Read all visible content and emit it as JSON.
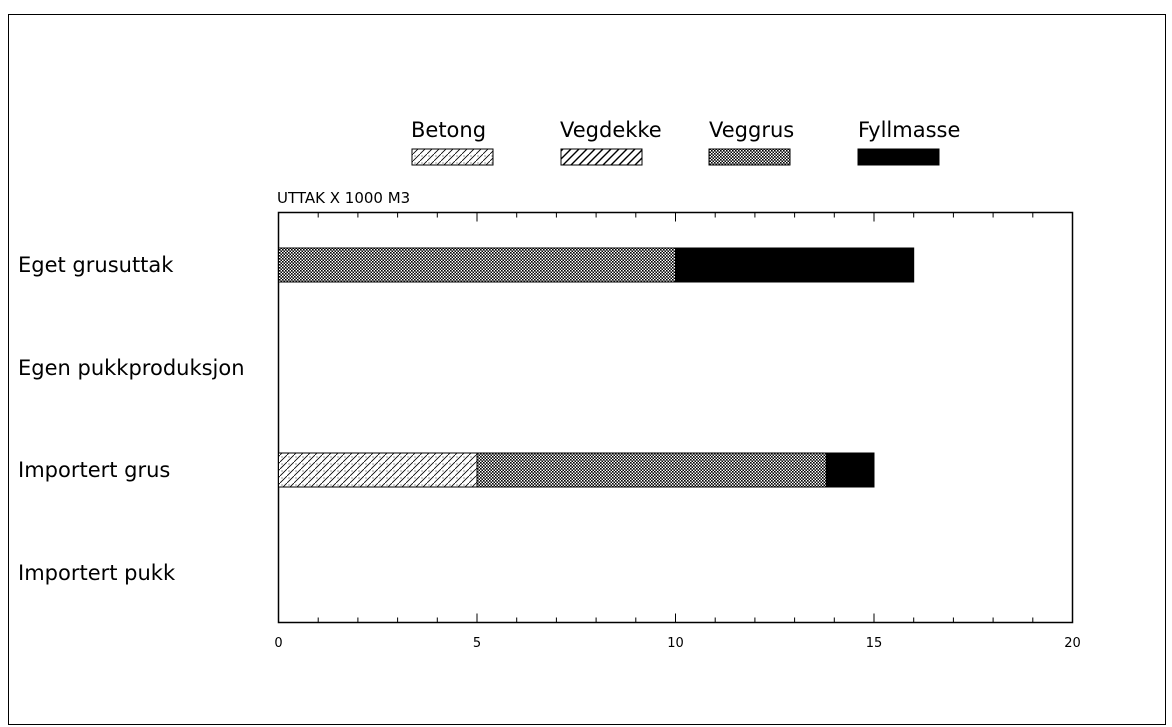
{
  "chart_data": {
    "type": "bar",
    "orientation": "horizontal",
    "stacked": true,
    "ylabel": "UTTAK X 1000 M3",
    "categories": [
      "Eget grusuttak",
      "Egen pukkproduksjon",
      "Importert grus",
      "Importert pukk"
    ],
    "series": [
      {
        "name": "Betong",
        "values": [
          0,
          0,
          5,
          0
        ]
      },
      {
        "name": "Vegdekke",
        "values": [
          0,
          0,
          0,
          0
        ]
      },
      {
        "name": "Veggrus",
        "values": [
          10,
          0,
          8.8,
          0
        ]
      },
      {
        "name": "Fyllmasse",
        "values": [
          6,
          0,
          1.2,
          0
        ]
      }
    ],
    "xlim": [
      0,
      20
    ],
    "xticks": [
      "0",
      "5",
      "10",
      "15",
      "20"
    ],
    "legend_position": "top",
    "grid": false
  }
}
